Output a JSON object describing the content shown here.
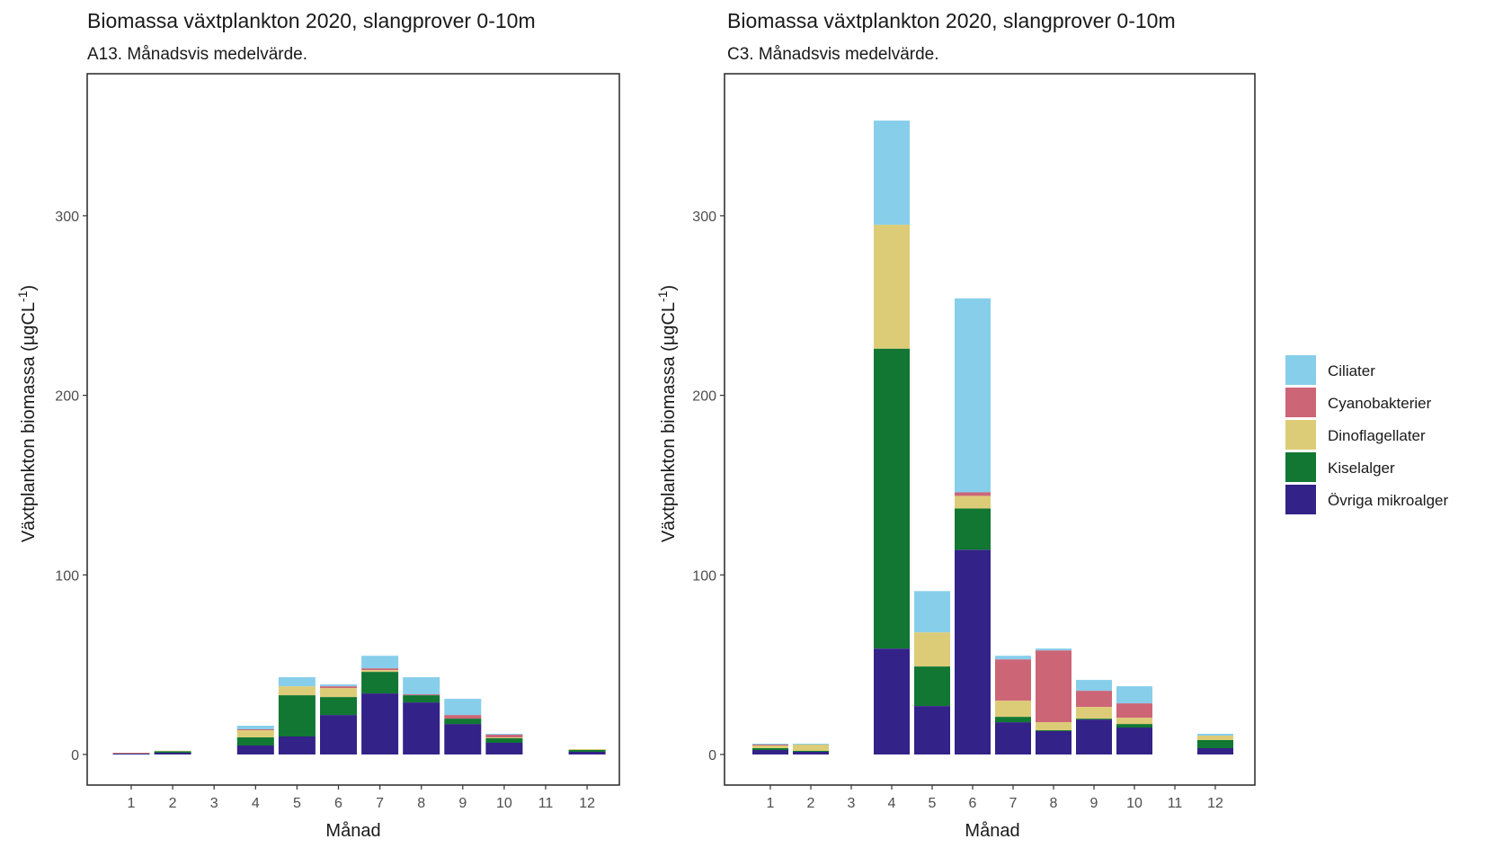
{
  "legend": {
    "items": [
      {
        "name": "Ciliater",
        "color": "#87ceeb"
      },
      {
        "name": "Cyanobakterier",
        "color": "#cc6677"
      },
      {
        "name": "Dinoflagellater",
        "color": "#ddcc77"
      },
      {
        "name": "Kiselalger",
        "color": "#117733"
      },
      {
        "name": "Övriga mikroalger",
        "color": "#332288"
      }
    ]
  },
  "chart_data": [
    {
      "type": "bar",
      "stacked": true,
      "title": "Biomassa växtplankton 2020, slangprover 0-10m",
      "subtitle": "A13. Månadsvis medelvärde.",
      "xlabel": "Månad",
      "ylabel": "Växtplankton biomassa (µgCL",
      "ylabel_sup": "-1",
      "ylabel_end": ")",
      "ylim": [
        0,
        370
      ],
      "yticks": [
        0,
        100,
        200,
        300
      ],
      "grid": false,
      "categories": [
        "1",
        "2",
        "3",
        "4",
        "5",
        "6",
        "7",
        "8",
        "9",
        "10",
        "11",
        "12"
      ],
      "series": [
        {
          "name": "Övriga mikroalger",
          "values": [
            0.5,
            1.0,
            0,
            5.0,
            10.0,
            22.0,
            34.0,
            29.0,
            17.0,
            6.5,
            0,
            1.5
          ]
        },
        {
          "name": "Kiselalger",
          "values": [
            0,
            0.8,
            0,
            4.5,
            23.0,
            10.0,
            12.0,
            4.0,
            3.0,
            2.5,
            0,
            1.0
          ]
        },
        {
          "name": "Dinoflagellater",
          "values": [
            0.2,
            0.3,
            0,
            4.0,
            5.0,
            5.0,
            1.0,
            0,
            0,
            0.5,
            0,
            0.5
          ]
        },
        {
          "name": "Cyanobakterier",
          "values": [
            0.3,
            0,
            0,
            0.5,
            0,
            1.0,
            1.0,
            0.5,
            2.0,
            1.5,
            0,
            0
          ]
        },
        {
          "name": "Ciliater",
          "values": [
            0,
            0,
            0,
            2.0,
            5.0,
            1.0,
            7.0,
            9.5,
            9.0,
            0.5,
            0,
            0
          ]
        }
      ]
    },
    {
      "type": "bar",
      "stacked": true,
      "title": "Biomassa växtplankton 2020, slangprover 0-10m",
      "subtitle": "C3. Månadsvis medelvärde.",
      "xlabel": "Månad",
      "ylabel": "Växtplankton biomassa (µgCL",
      "ylabel_sup": "-1",
      "ylabel_end": ")",
      "ylim": [
        0,
        370
      ],
      "yticks": [
        0,
        100,
        200,
        300
      ],
      "grid": false,
      "categories": [
        "1",
        "2",
        "3",
        "4",
        "5",
        "6",
        "7",
        "8",
        "9",
        "10",
        "11",
        "12"
      ],
      "series": [
        {
          "name": "Övriga mikroalger",
          "values": [
            2.5,
            1.5,
            0,
            59,
            27,
            114,
            18,
            13,
            19.5,
            15,
            0,
            3.5
          ]
        },
        {
          "name": "Kiselalger",
          "values": [
            1.0,
            0.5,
            0,
            167,
            22,
            23,
            3,
            0.5,
            0.5,
            2,
            0,
            4.5
          ]
        },
        {
          "name": "Dinoflagellater",
          "values": [
            1.5,
            3.5,
            0,
            69,
            19,
            7,
            9,
            4.5,
            6.5,
            3.5,
            0,
            2.5
          ]
        },
        {
          "name": "Cyanobakterier",
          "values": [
            0.5,
            0,
            0,
            0,
            0,
            2,
            23,
            40,
            9,
            8,
            0,
            0
          ]
        },
        {
          "name": "Ciliater",
          "values": [
            0.5,
            0.5,
            0,
            58,
            23,
            108,
            2,
            1,
            6,
            9.5,
            0,
            1
          ]
        }
      ]
    }
  ]
}
